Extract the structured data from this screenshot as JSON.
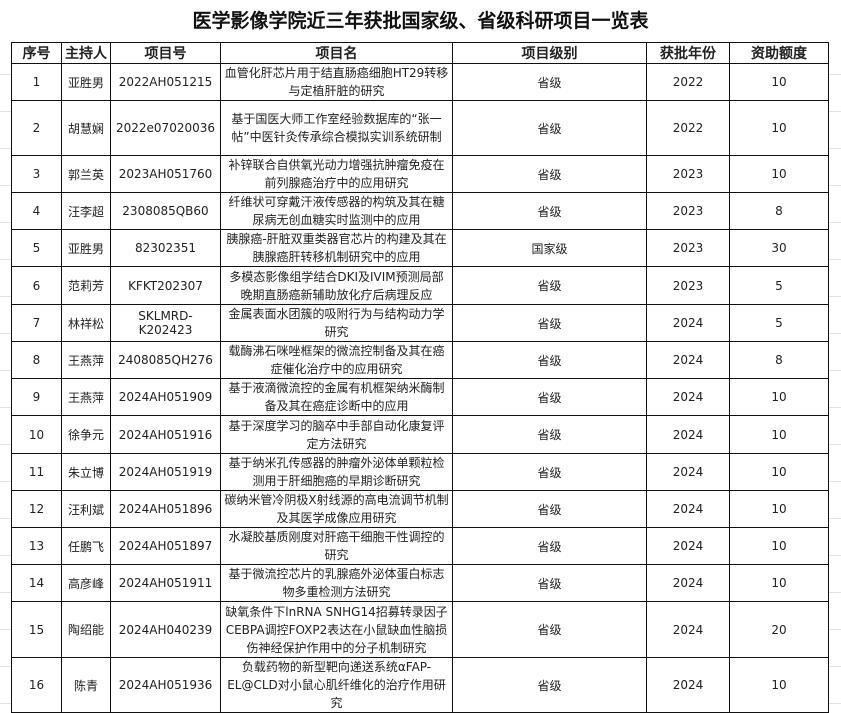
{
  "title": "医学影像学院近三年获批国家级、省级科研项目一览表",
  "headers": [
    "序号",
    "主持人",
    "项目号",
    "项目名",
    "项目级别",
    "获批年份",
    "资助额度"
  ],
  "rows": [
    [
      "1",
      "亚胜男",
      "2022AH051215",
      "血管化肝芯片用于结直肠癌细胞HT29转移与定植肝脏的研究",
      "省级",
      "2022",
      "10"
    ],
    [
      "2",
      "胡慧娴",
      "2022e07020036",
      "基于国医大师工作室经验数据库的“张一帖”中医针灸传承综合模拟实训系统研制",
      "省级",
      "2022",
      "10"
    ],
    [
      "3",
      "郭兰英",
      "2023AH051760",
      "补锌联合自供氧光动力增强抗肿瘤免疫在前列腺癌治疗中的应用研究",
      "省级",
      "2023",
      "10"
    ],
    [
      "4",
      "汪李超",
      "2308085QB60",
      "纤维状可穿戴汗液传感器的构筑及其在糖尿病无创血糖实时监测中的应用",
      "省级",
      "2023",
      "8"
    ],
    [
      "5",
      "亚胜男",
      "82302351",
      "胰腺癌-肝脏双重类器官芯片的构建及其在胰腺癌肝转移机制研究中的应用",
      "国家级",
      "2023",
      "30"
    ],
    [
      "6",
      "范莉芳",
      "KFKT202307",
      "多模态影像组学结合DKI及IVIM预测局部晚期直肠癌新辅助放化疗后病理反应",
      "省级",
      "2023",
      "5"
    ],
    [
      "7",
      "林祥松",
      "SKLMRD-K202423",
      "金属表面水团簇的吸附行为与结构动力学研究",
      "省级",
      "2024",
      "5"
    ],
    [
      "8",
      "王燕萍",
      "2408085QH276",
      "载酶沸石咪唑框架的微流控制备及其在癌症催化治疗中的应用研究",
      "省级",
      "2024",
      "8"
    ],
    [
      "9",
      "王燕萍",
      "2024AH051909",
      "基于液滴微流控的金属有机框架纳米酶制备及其在癌症诊断中的应用",
      "省级",
      "2024",
      "10"
    ],
    [
      "10",
      "徐争元",
      "2024AH051916",
      "基于深度学习的脑卒中手部自动化康复评定方法研究",
      "省级",
      "2024",
      "10"
    ],
    [
      "11",
      "朱立博",
      "2024AH051919",
      "基于纳米孔传感器的肿瘤外泌体单颗粒检测用于肝细胞癌的早期诊断研究",
      "省级",
      "2024",
      "10"
    ],
    [
      "12",
      "汪利斌",
      "2024AH051896",
      "碳纳米管冷阴极X射线源的高电流调节机制及其医学成像应用研究",
      "省级",
      "2024",
      "10"
    ],
    [
      "13",
      "任鹏飞",
      "2024AH051897",
      "水凝胶基质刚度对肝癌干细胞干性调控的研究",
      "省级",
      "2024",
      "10"
    ],
    [
      "14",
      "高彦峰",
      "2024AH051911",
      "基于微流控芯片的乳腺癌外泌体蛋白标志物多重检测方法研究",
      "省级",
      "2024",
      "10"
    ],
    [
      "15",
      "陶绍能",
      "2024AH040239",
      "缺氧条件下lnRNA SNHG14招募转录因子CEBPA调控FOXP2表达在小鼠缺血性脑损伤神经保护作用中的分子机制研究",
      "省级",
      "2024",
      "20"
    ],
    [
      "16",
      "陈青",
      "2024AH051936",
      "负载药物的新型靶向递送系统αFAP-EL@CLD对小鼠心肌纤维化的治疗作用研究",
      "省级",
      "2024",
      "10"
    ]
  ]
}
